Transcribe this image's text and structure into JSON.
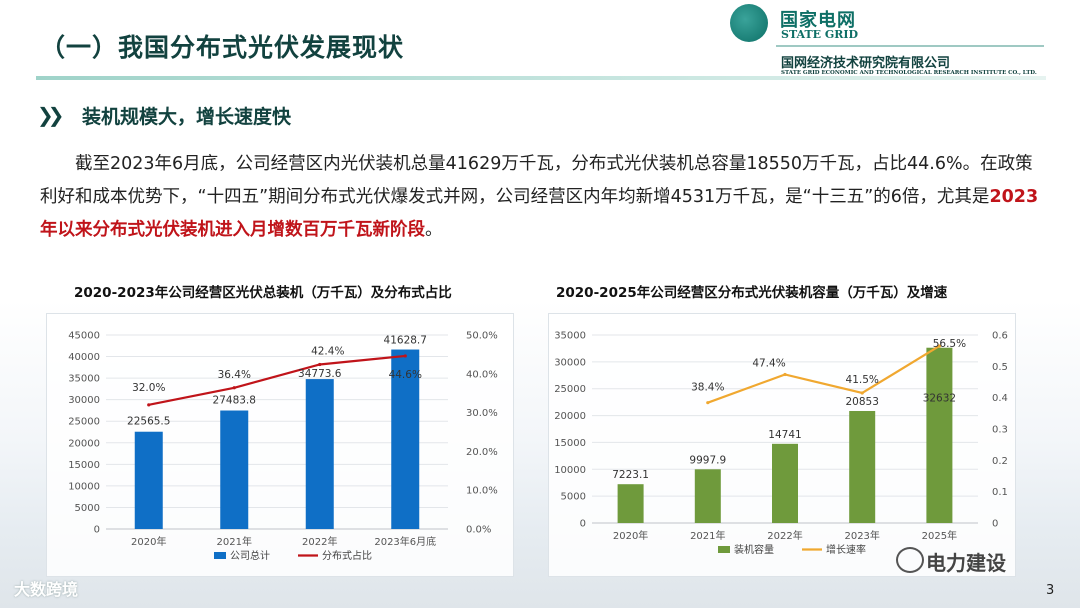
{
  "header": {
    "section_title": "（一）我国分布式光伏发展现状",
    "logo_cn": "国家电网",
    "logo_en": "STATE GRID",
    "institute_cn": "国网经济技术研究院有限公司",
    "institute_en": "STATE GRID ECONOMIC AND TECHNOLOGICAL RESEARCH INSTITUTE CO., LTD."
  },
  "subheading": "装机规模大，增长速度快",
  "paragraph": {
    "text_before": "　　截至2023年6月底，公司经营区内光伏装机总量41629万千瓦，分布式光伏装机总容量18550万千瓦，占比44.6%。在政策利好和成本优势下，“十四五”期间分布式光伏爆发式并网，公司经营区内年均新增4531万千瓦，是“十三五”的6倍，尤其是",
    "highlight": "2023年以来分布式光伏装机进入月增数百万千瓦新阶段",
    "text_after": "。"
  },
  "colors": {
    "bar_blue": "#0f6fc6",
    "line_red": "#c0141a",
    "bar_green": "#6f9a3c",
    "line_orange": "#f0a830",
    "brand": "#0e6f66"
  },
  "chart_data": [
    {
      "type": "bar",
      "title": "2020-2023年公司经营区光伏总装机（万千瓦）及分布式占比",
      "categories": [
        "2020年",
        "2021年",
        "2022年",
        "2023年6月底"
      ],
      "series": [
        {
          "name": "公司总计",
          "type": "bar",
          "axis": "left",
          "values": [
            22565.5,
            27483.8,
            34773.6,
            41628.7
          ],
          "labels": [
            "22565.5",
            "27483.8",
            "34773.6",
            "41628.7"
          ]
        },
        {
          "name": "分布式占比",
          "type": "line",
          "axis": "right",
          "values": [
            0.32,
            0.364,
            0.424,
            0.446
          ],
          "labels": [
            "32.0%",
            "36.4%",
            "42.4%",
            "44.6%"
          ]
        }
      ],
      "y_left": {
        "min": 0,
        "max": 45000,
        "ticks": [
          "0",
          "5000",
          "10000",
          "15000",
          "20000",
          "25000",
          "30000",
          "35000",
          "40000",
          "45000"
        ]
      },
      "y_right": {
        "min": 0,
        "max": 0.5,
        "ticks": [
          "0.0%",
          "10.0%",
          "20.0%",
          "30.0%",
          "40.0%",
          "50.0%"
        ]
      },
      "legend": [
        "公司总计",
        "分布式占比"
      ]
    },
    {
      "type": "bar",
      "title": "2020-2025年公司经营区分布式光伏装机容量（万千瓦）及增速",
      "categories": [
        "2020年",
        "2021年",
        "2022年",
        "2023年",
        "2025年"
      ],
      "series": [
        {
          "name": "装机容量",
          "type": "bar",
          "axis": "left",
          "values": [
            7223.1,
            9997.9,
            14741,
            20853,
            32632
          ],
          "labels": [
            "7223.1",
            "9997.9",
            "14741",
            "20853",
            "32632"
          ]
        },
        {
          "name": "增长速率",
          "type": "line",
          "axis": "right",
          "values": [
            null,
            0.384,
            0.474,
            0.415,
            0.565
          ],
          "labels": [
            "",
            "38.4%",
            "47.4%",
            "41.5%",
            "56.5%"
          ]
        }
      ],
      "y_left": {
        "min": 0,
        "max": 35000,
        "ticks": [
          "0",
          "5000",
          "10000",
          "15000",
          "20000",
          "25000",
          "30000",
          "35000"
        ]
      },
      "y_right": {
        "min": 0,
        "max": 0.6,
        "ticks": [
          "0",
          "0.1",
          "0.2",
          "0.3",
          "0.4",
          "0.5",
          "0.6"
        ]
      },
      "legend": [
        "装机容量",
        "增长速率"
      ]
    }
  ],
  "footer": {
    "watermark_left": "大数跨境",
    "watermark_right": "电力建设",
    "page_number": "3"
  }
}
